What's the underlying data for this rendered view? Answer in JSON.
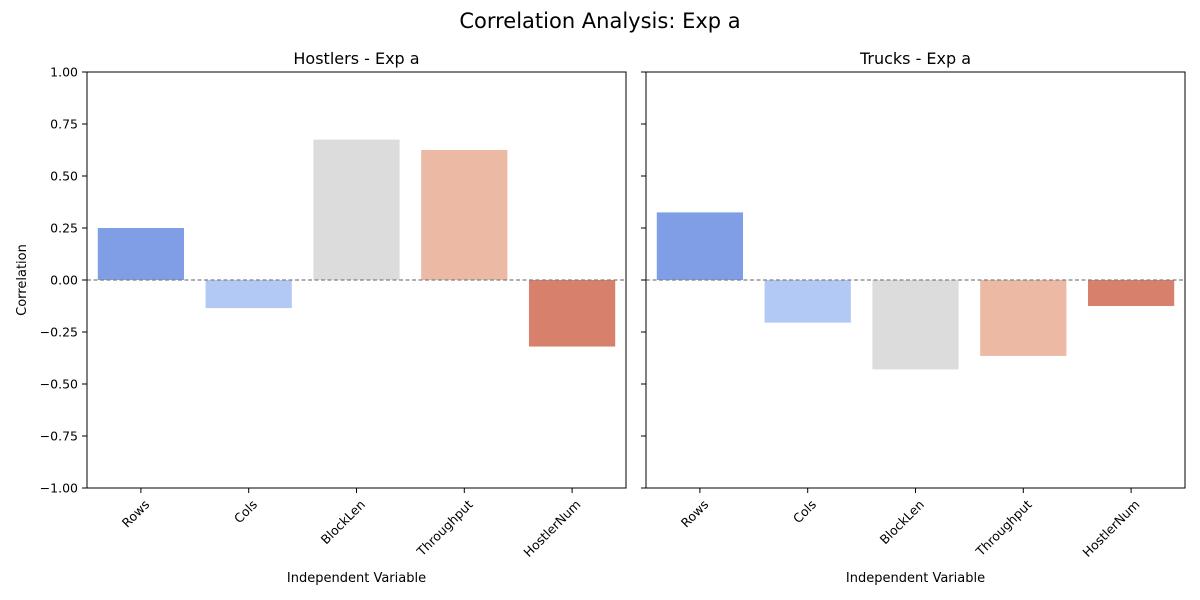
{
  "figure": {
    "title": "Correlation Analysis: Exp a",
    "ylabel": "Correlation"
  },
  "chart_data": [
    {
      "type": "bar",
      "title": "Hostlers - Exp a",
      "xlabel": "Independent Variable",
      "ylabel": "Correlation",
      "categories": [
        "Rows",
        "Cols",
        "BlockLen",
        "Throughput",
        "HostlerNum"
      ],
      "values": [
        0.25,
        -0.135,
        0.675,
        0.625,
        -0.32
      ],
      "colors": [
        "#7f9ee6",
        "#b3c9f5",
        "#dcdcdc",
        "#ecbaa4",
        "#d7816d"
      ],
      "ylim": [
        -1.0,
        1.0
      ],
      "yticks": [
        1.0,
        0.75,
        0.5,
        0.25,
        0.0,
        -0.25,
        -0.5,
        -0.75,
        -1.0
      ],
      "ytick_labels": [
        "1.00",
        "0.75",
        "0.50",
        "0.25",
        "0.00",
        "−0.25",
        "−0.50",
        "−0.75",
        "−1.00"
      ],
      "reference_line": 0.0,
      "grid": false
    },
    {
      "type": "bar",
      "title": "Trucks - Exp a",
      "xlabel": "Independent Variable",
      "categories": [
        "Rows",
        "Cols",
        "BlockLen",
        "Throughput",
        "HostlerNum"
      ],
      "values": [
        0.325,
        -0.205,
        -0.43,
        -0.365,
        -0.125
      ],
      "colors": [
        "#7f9ee6",
        "#b3c9f5",
        "#dcdcdc",
        "#ecbaa4",
        "#d7816d"
      ],
      "ylim": [
        -1.0,
        1.0
      ],
      "yticks": [
        1.0,
        0.75,
        0.5,
        0.25,
        0.0,
        -0.25,
        -0.5,
        -0.75,
        -1.0
      ],
      "reference_line": 0.0,
      "grid": false
    }
  ]
}
